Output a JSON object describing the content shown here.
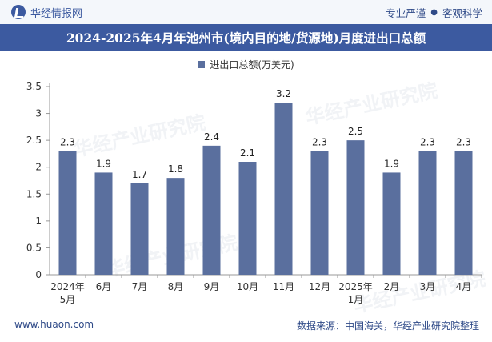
{
  "header": {
    "brand": "华经情报网",
    "tagline_left": "专业严谨",
    "tagline_right": "客观科学"
  },
  "title": "2024-2025年4月年池州市(境内目的地/货源地)月度进出口总额",
  "footer": {
    "website": "www.huaon.com",
    "source": "数据来源：中国海关，华经产业研究院整理"
  },
  "watermark": "华经产业研究院",
  "colors": {
    "bar": "#5a6f9e",
    "title_bg": "#3c5aa0",
    "accent": "#2f4a88"
  },
  "chart_data": {
    "type": "bar",
    "legend": "进出口总额(万美元)",
    "categories": [
      [
        "2024年",
        "5月"
      ],
      [
        "6月"
      ],
      [
        "7月"
      ],
      [
        "8月"
      ],
      [
        "9月"
      ],
      [
        "10月"
      ],
      [
        "11月"
      ],
      [
        "12月"
      ],
      [
        "2025年",
        "1月"
      ],
      [
        "2月"
      ],
      [
        "3月"
      ],
      [
        "4月"
      ]
    ],
    "values": [
      2.3,
      1.9,
      1.7,
      1.8,
      2.4,
      2.1,
      3.2,
      2.3,
      2.5,
      1.9,
      2.3,
      2.3
    ],
    "data_labels": [
      "2.3",
      "1.9",
      "1.7",
      "1.8",
      "2.4",
      "2.1",
      "3.2",
      "2.3",
      "2.5",
      "1.9",
      "2.3",
      "2.3"
    ],
    "yticks": [
      "0",
      "0.5",
      "1",
      "1.5",
      "2",
      "2.5",
      "3",
      "3.5"
    ],
    "ylim": [
      0,
      3.5
    ],
    "grid": false
  }
}
